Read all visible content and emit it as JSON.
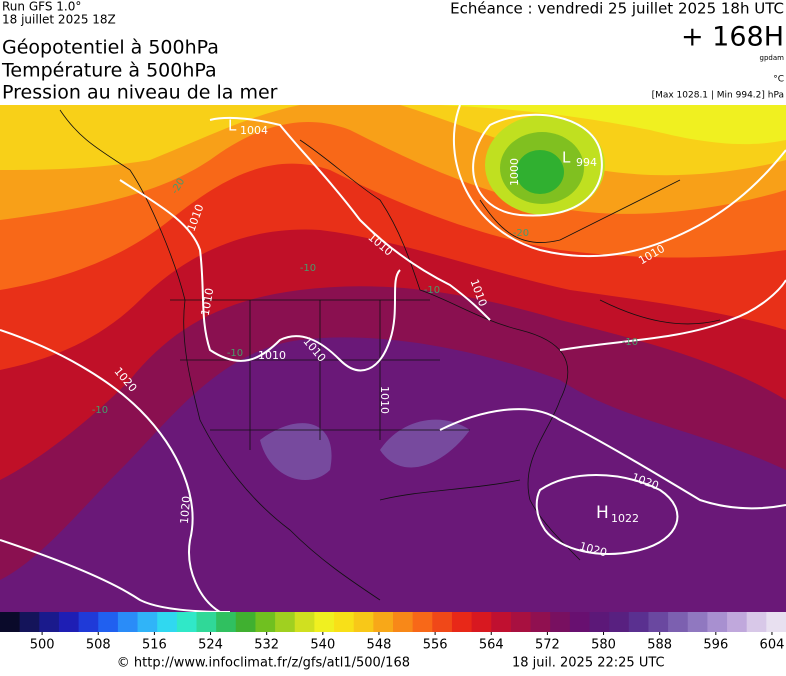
{
  "header": {
    "run": "Run GFS 1.0°",
    "run_date": "18 juillet 2025 18Z",
    "titles": [
      "Géopotentiel à 500hPa",
      "Température à 500hPa",
      "Pression au niveau de la mer"
    ],
    "echeance": "Echéance : vendredi 25 juillet 2025 18h UTC",
    "lead": "+ 168H",
    "unit_geo": "gpdam",
    "unit_temp": "°C",
    "pressure_range": "[Max 1028.1 | Min 994.2] hPa"
  },
  "map": {
    "labels": [
      "L",
      "1004",
      "L",
      "994",
      "1000",
      "1010",
      "1010",
      "1010",
      "1010",
      "1010",
      "1010",
      "1010",
      "1010",
      "1020",
      "1020",
      "1020",
      "1020",
      "H",
      "1022",
      "-20",
      "-20",
      "-10",
      "-10",
      "-10",
      "-10",
      "-10"
    ]
  },
  "colorbar": {
    "clim": [
      494,
      606
    ],
    "ticks": [
      500,
      508,
      516,
      524,
      532,
      540,
      548,
      556,
      564,
      572,
      580,
      588,
      596,
      604
    ],
    "colors": [
      "#0a0a2a",
      "#14145a",
      "#1a1a8c",
      "#1e1eb4",
      "#1f3ad8",
      "#2060f0",
      "#2a8cf8",
      "#30b4f8",
      "#30d8f0",
      "#30e8c8",
      "#30d898",
      "#30c060",
      "#40b030",
      "#70c020",
      "#a0d020",
      "#d0e020",
      "#f0f020",
      "#f8e018",
      "#f8c818",
      "#f8a818",
      "#f88818",
      "#f86818",
      "#f04818",
      "#e82818",
      "#d81820",
      "#c01030",
      "#a81040",
      "#901050",
      "#781060",
      "#681070",
      "#5c1878",
      "#582080",
      "#5a3090",
      "#6a48a0",
      "#7c60b0",
      "#9078c0",
      "#a890d0",
      "#c0a8dc",
      "#d8c8e8",
      "#e8e0f0"
    ]
  },
  "footer": {
    "url": "© http://www.infoclimat.fr/z/gfs/atl1/500/168",
    "timestamp": "18 juil. 2025 22:25 UTC"
  }
}
